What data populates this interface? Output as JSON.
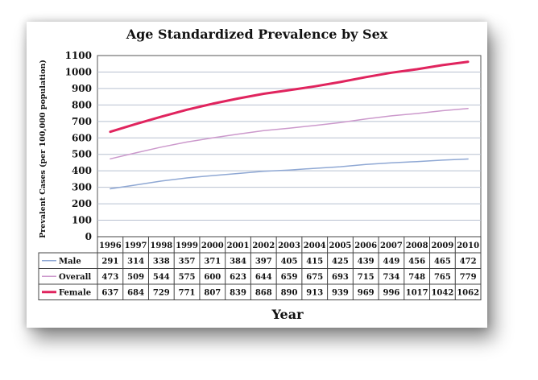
{
  "chart_data": {
    "type": "line",
    "title": "Age Standardized Prevalence by Sex",
    "xlabel": "Year",
    "ylabel": "Prevalent Cases (per 100,000 population)",
    "ylim": [
      0,
      1100
    ],
    "yticks": [
      "0",
      "100",
      "200",
      "300",
      "400",
      "500",
      "600",
      "700",
      "800",
      "900",
      "1000",
      "1100"
    ],
    "categories": [
      "1996",
      "1997",
      "1998",
      "1999",
      "2000",
      "2001",
      "2002",
      "2003",
      "2004",
      "2005",
      "2006",
      "2007",
      "2008",
      "2009",
      "2010"
    ],
    "grid": true,
    "legend": "data-table",
    "series": [
      {
        "name": "Male",
        "color": "#8fa8d4",
        "width": 1.5,
        "values": [
          291,
          314,
          338,
          357,
          371,
          384,
          397,
          405,
          415,
          425,
          439,
          449,
          456,
          465,
          472
        ]
      },
      {
        "name": "Overall",
        "color": "#cc99cc",
        "width": 1.5,
        "values": [
          473,
          509,
          544,
          575,
          600,
          623,
          644,
          659,
          675,
          693,
          715,
          734,
          748,
          765,
          779
        ]
      },
      {
        "name": "Female",
        "color": "#e0245e",
        "width": 3,
        "values": [
          637,
          684,
          729,
          771,
          807,
          839,
          868,
          890,
          913,
          939,
          969,
          996,
          1017,
          1042,
          1062
        ]
      }
    ]
  }
}
